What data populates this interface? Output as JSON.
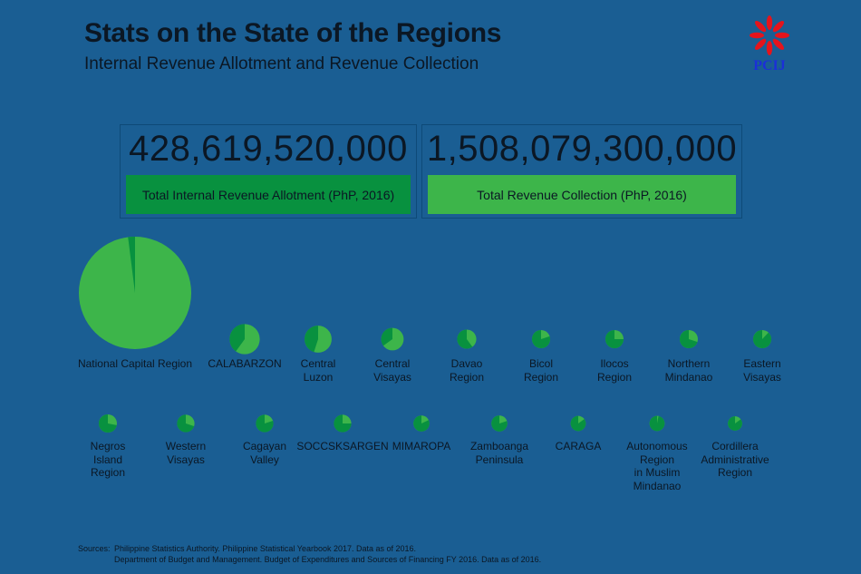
{
  "header": {
    "title": "Stats on the State of the Regions",
    "subtitle": "Internal Revenue Allotment and Revenue Collection",
    "logo_text": "PCIJ"
  },
  "stats": [
    {
      "value": "428,619,520,000",
      "label": "Total Internal Revenue Allotment (PhP, 2016)",
      "color": "#08913f"
    },
    {
      "value": "1,508,079,300,000",
      "label": "Total Revenue Collection (PhP, 2016)",
      "color": "#3db54a"
    }
  ],
  "colors": {
    "background": "#1a5e93",
    "ira": "#08913f",
    "revenue": "#3db54a"
  },
  "chart_data": {
    "type": "pie",
    "encoding": "Each region is a pie; slice shares are IRA (dark green) vs revenue collection (light green); circle area scales with total.",
    "series_colors": {
      "ira": "#08913f",
      "revenue": "#3db54a"
    },
    "regions": [
      {
        "name": "National Capital Region",
        "lines": [
          "National Capital Region"
        ],
        "ira_share": 0.02,
        "total_scale": 1.0
      },
      {
        "name": "CALABARZON",
        "lines": [
          "CALABARZON"
        ],
        "ira_share": 0.4,
        "total_scale": 0.072
      },
      {
        "name": "Central Luzon",
        "lines": [
          "Central",
          "Luzon"
        ],
        "ira_share": 0.45,
        "total_scale": 0.058
      },
      {
        "name": "Central Visayas",
        "lines": [
          "Central",
          "Visayas"
        ],
        "ira_share": 0.35,
        "total_scale": 0.04
      },
      {
        "name": "Davao Region",
        "lines": [
          "Davao",
          "Region"
        ],
        "ira_share": 0.6,
        "total_scale": 0.029
      },
      {
        "name": "Bicol Region",
        "lines": [
          "Bicol",
          "Region"
        ],
        "ira_share": 0.8,
        "total_scale": 0.026
      },
      {
        "name": "Ilocos Region",
        "lines": [
          "Ilocos",
          "Region"
        ],
        "ira_share": 0.75,
        "total_scale": 0.026
      },
      {
        "name": "Northern Mindanao",
        "lines": [
          "Northern",
          "Mindanao"
        ],
        "ira_share": 0.7,
        "total_scale": 0.026
      },
      {
        "name": "Eastern Visayas",
        "lines": [
          "Eastern",
          "Visayas"
        ],
        "ira_share": 0.88,
        "total_scale": 0.026
      },
      {
        "name": "Negros Island Region",
        "lines": [
          "Negros",
          "Island",
          "Region"
        ],
        "ira_share": 0.72,
        "total_scale": 0.026
      },
      {
        "name": "Western Visayas",
        "lines": [
          "Western",
          "Visayas"
        ],
        "ira_share": 0.7,
        "total_scale": 0.024
      },
      {
        "name": "Cagayan Valley",
        "lines": [
          "Cagayan",
          "Valley"
        ],
        "ira_share": 0.8,
        "total_scale": 0.024
      },
      {
        "name": "SOCCSKSARGEN",
        "lines": [
          "SOCCSKSARGEN"
        ],
        "ira_share": 0.75,
        "total_scale": 0.024
      },
      {
        "name": "MIMAROPA",
        "lines": [
          "MIMAROPA"
        ],
        "ira_share": 0.82,
        "total_scale": 0.02
      },
      {
        "name": "Zamboanga Peninsula",
        "lines": [
          "Zamboanga",
          "Peninsula"
        ],
        "ira_share": 0.8,
        "total_scale": 0.02
      },
      {
        "name": "CARAGA",
        "lines": [
          "CARAGA"
        ],
        "ira_share": 0.85,
        "total_scale": 0.018
      },
      {
        "name": "Autonomous Region in Muslim Mindanao",
        "lines": [
          "Autonomous",
          "Region",
          "in Muslim",
          "Mindanao"
        ],
        "ira_share": 0.97,
        "total_scale": 0.018
      },
      {
        "name": "Cordillera Administrative Region",
        "lines": [
          "Cordillera",
          "Administrative",
          "Region"
        ],
        "ira_share": 0.85,
        "total_scale": 0.016
      }
    ]
  },
  "sources": {
    "lead": "Sources:",
    "lines": [
      "Philippine Statistics Authority. Philippine Statistical Yearbook 2017. Data as of 2016.",
      "Department of Budget and Management. Budget of Expenditures and Sources of Financing FY 2016. Data as of 2016."
    ]
  }
}
